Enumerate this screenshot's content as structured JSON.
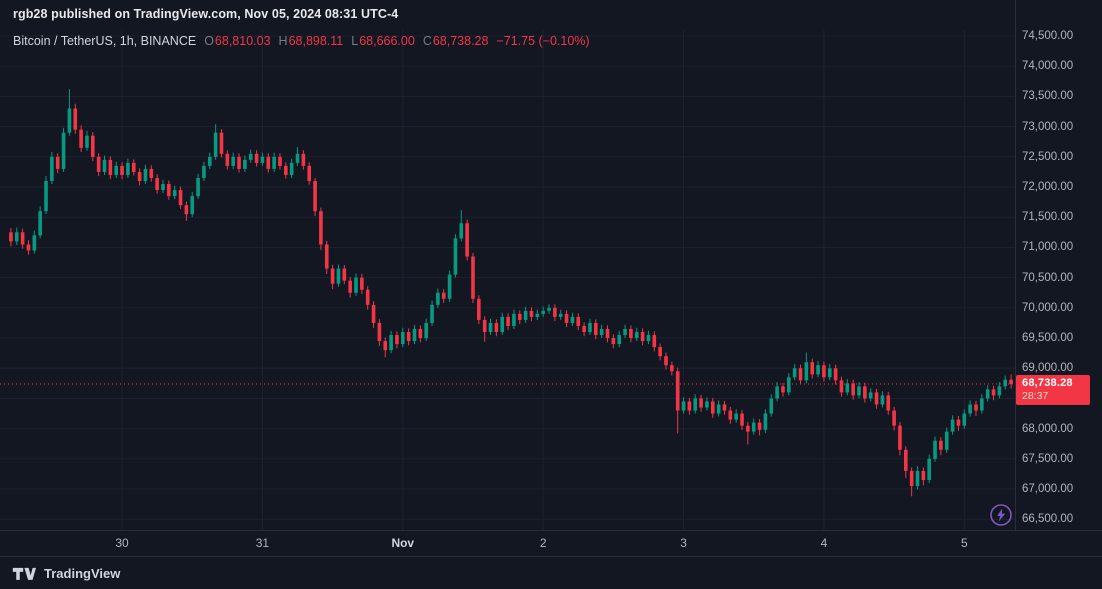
{
  "header": {
    "published_line": "rgb28 published on TradingView.com, Nov 05, 2024 08:31 UTC-4",
    "symbol": "Bitcoin / TetherUS, 1h, BINANCE",
    "ohlc": [
      {
        "k": "O",
        "v": "68,810.03"
      },
      {
        "k": "H",
        "v": "68,898.11"
      },
      {
        "k": "L",
        "v": "68,666.00"
      },
      {
        "k": "C",
        "v": "68,738.28"
      }
    ],
    "change": "−71.75 (−0.10%)"
  },
  "footer": {
    "brand": "TradingView"
  },
  "colors": {
    "background": "#131722",
    "text": "#d1d4dc",
    "muted": "#787b86",
    "axis_text": "#b2b5be",
    "grid": "#1d2230",
    "separator": "#2a2e39",
    "up": "#089981",
    "down": "#f23645",
    "boost_purple": "#7e57c2"
  },
  "chart_data": {
    "type": "candlestick",
    "symbol": "Bitcoin / TetherUS",
    "exchange": "BINANCE",
    "interval": "1h",
    "ohlc_format": [
      "open",
      "high",
      "low",
      "close"
    ],
    "price_axis": {
      "min": 66322,
      "max": 74600,
      "labels": [
        {
          "value": 74500,
          "text": "74,500.00"
        },
        {
          "value": 74000,
          "text": "74,000.00"
        },
        {
          "value": 73500,
          "text": "73,500.00"
        },
        {
          "value": 73000,
          "text": "73,000.00"
        },
        {
          "value": 72500,
          "text": "72,500.00"
        },
        {
          "value": 72000,
          "text": "72,000.00"
        },
        {
          "value": 71500,
          "text": "71,500.00"
        },
        {
          "value": 71000,
          "text": "71,000.00"
        },
        {
          "value": 70500,
          "text": "70,500.00"
        },
        {
          "value": 70000,
          "text": "70,000.00"
        },
        {
          "value": 69500,
          "text": "69,500.00"
        },
        {
          "value": 69000,
          "text": "69,000.00"
        },
        {
          "value": 68500,
          "text": "68,500.00"
        },
        {
          "value": 68000,
          "text": "68,000.00"
        },
        {
          "value": 67500,
          "text": "67,500.00"
        },
        {
          "value": 67000,
          "text": "67,000.00"
        },
        {
          "value": 66500,
          "text": "66,500.00"
        }
      ]
    },
    "time_axis": {
      "ticks": [
        {
          "label": "30",
          "index": 19,
          "major": false
        },
        {
          "label": "31",
          "index": 43,
          "major": false
        },
        {
          "label": "Nov",
          "index": 67,
          "major": true
        },
        {
          "label": "2",
          "index": 91,
          "major": false
        },
        {
          "label": "3",
          "index": 115,
          "major": false
        },
        {
          "label": "4",
          "index": 139,
          "major": false
        },
        {
          "label": "5",
          "index": 163,
          "major": false
        }
      ]
    },
    "last_price": {
      "value": 68738.28,
      "text": "68,738.28",
      "countdown": "28:37"
    },
    "candles": [
      [
        71250,
        71320,
        71020,
        71100
      ],
      [
        71100,
        71330,
        71040,
        71250
      ],
      [
        71250,
        71310,
        70980,
        71050
      ],
      [
        71050,
        71120,
        70880,
        70950
      ],
      [
        70950,
        71280,
        70900,
        71200
      ],
      [
        71200,
        71680,
        71150,
        71600
      ],
      [
        71600,
        72180,
        71550,
        72100
      ],
      [
        72100,
        72580,
        72050,
        72500
      ],
      [
        72500,
        72560,
        72230,
        72300
      ],
      [
        72300,
        72980,
        72250,
        72900
      ],
      [
        72900,
        73620,
        72850,
        73300
      ],
      [
        73300,
        73380,
        72880,
        72950
      ],
      [
        72950,
        73020,
        72580,
        72650
      ],
      [
        72650,
        72930,
        72600,
        72850
      ],
      [
        72850,
        72910,
        72430,
        72500
      ],
      [
        72500,
        72560,
        72180,
        72250
      ],
      [
        72250,
        72520,
        72200,
        72450
      ],
      [
        72450,
        72510,
        72130,
        72200
      ],
      [
        72200,
        72420,
        72150,
        72350
      ],
      [
        72350,
        72410,
        72130,
        72200
      ],
      [
        72200,
        72470,
        72150,
        72400
      ],
      [
        72400,
        72460,
        72190,
        72250
      ],
      [
        72250,
        72310,
        72030,
        72100
      ],
      [
        72100,
        72370,
        72050,
        72300
      ],
      [
        72300,
        72360,
        72090,
        72150
      ],
      [
        72150,
        72210,
        71890,
        71950
      ],
      [
        71950,
        72120,
        71900,
        72050
      ],
      [
        72050,
        72110,
        71790,
        71850
      ],
      [
        71850,
        72020,
        71800,
        71950
      ],
      [
        71950,
        72010,
        71640,
        71700
      ],
      [
        71700,
        71760,
        71440,
        71550
      ],
      [
        71550,
        71920,
        71500,
        71850
      ],
      [
        71850,
        72220,
        71800,
        72150
      ],
      [
        72150,
        72420,
        72100,
        72350
      ],
      [
        72350,
        72570,
        72300,
        72500
      ],
      [
        72500,
        73040,
        72450,
        72900
      ],
      [
        72900,
        72960,
        72490,
        72550
      ],
      [
        72550,
        72610,
        72290,
        72350
      ],
      [
        72350,
        72570,
        72300,
        72500
      ],
      [
        72500,
        72560,
        72240,
        72300
      ],
      [
        72300,
        72520,
        72250,
        72450
      ],
      [
        72450,
        72620,
        72400,
        72550
      ],
      [
        72550,
        72610,
        72340,
        72400
      ],
      [
        72400,
        72570,
        72350,
        72500
      ],
      [
        72500,
        72560,
        72240,
        72300
      ],
      [
        72300,
        72570,
        72250,
        72500
      ],
      [
        72500,
        72560,
        72290,
        72350
      ],
      [
        72350,
        72410,
        72140,
        72200
      ],
      [
        72200,
        72470,
        72150,
        72400
      ],
      [
        72400,
        72660,
        72350,
        72550
      ],
      [
        72550,
        72610,
        72290,
        72350
      ],
      [
        72350,
        72410,
        72040,
        72100
      ],
      [
        72100,
        72150,
        71520,
        71600
      ],
      [
        71600,
        71660,
        70960,
        71050
      ],
      [
        71050,
        71110,
        70560,
        70650
      ],
      [
        70650,
        70710,
        70310,
        70400
      ],
      [
        70400,
        70720,
        70350,
        70650
      ],
      [
        70650,
        70710,
        70390,
        70450
      ],
      [
        70450,
        70510,
        70170,
        70250
      ],
      [
        70250,
        70570,
        70200,
        70500
      ],
      [
        70500,
        70560,
        70230,
        70300
      ],
      [
        70300,
        70360,
        69970,
        70050
      ],
      [
        70050,
        70110,
        69670,
        69750
      ],
      [
        69750,
        69810,
        69370,
        69450
      ],
      [
        69450,
        69510,
        69180,
        69300
      ],
      [
        69300,
        69620,
        69250,
        69550
      ],
      [
        69550,
        69610,
        69330,
        69400
      ],
      [
        69400,
        69670,
        69350,
        69600
      ],
      [
        69600,
        69660,
        69380,
        69450
      ],
      [
        69450,
        69720,
        69400,
        69650
      ],
      [
        69650,
        69710,
        69430,
        69500
      ],
      [
        69500,
        69820,
        69450,
        69750
      ],
      [
        69750,
        70120,
        69700,
        70050
      ],
      [
        70050,
        70320,
        70000,
        70250
      ],
      [
        70250,
        70310,
        70080,
        70150
      ],
      [
        70150,
        70620,
        70100,
        70550
      ],
      [
        70550,
        71220,
        70500,
        71150
      ],
      [
        71150,
        71620,
        71100,
        71400
      ],
      [
        71400,
        71460,
        70780,
        70850
      ],
      [
        70850,
        70910,
        70080,
        70150
      ],
      [
        70150,
        70210,
        69730,
        69800
      ],
      [
        69800,
        69860,
        69440,
        69600
      ],
      [
        69600,
        69820,
        69550,
        69750
      ],
      [
        69750,
        69810,
        69530,
        69600
      ],
      [
        69600,
        69920,
        69550,
        69850
      ],
      [
        69850,
        69910,
        69630,
        69700
      ],
      [
        69700,
        69970,
        69650,
        69900
      ],
      [
        69900,
        69960,
        69730,
        69800
      ],
      [
        69800,
        70020,
        69750,
        69950
      ],
      [
        69950,
        70010,
        69780,
        69850
      ],
      [
        69850,
        69970,
        69800,
        69900
      ],
      [
        69900,
        70020,
        69850,
        69950
      ],
      [
        69950,
        70060,
        69900,
        70000
      ],
      [
        70000,
        70060,
        69780,
        69850
      ],
      [
        69850,
        69970,
        69800,
        69900
      ],
      [
        69900,
        69960,
        69680,
        69750
      ],
      [
        69750,
        69920,
        69700,
        69850
      ],
      [
        69850,
        69910,
        69630,
        69700
      ],
      [
        69700,
        69760,
        69530,
        69600
      ],
      [
        69600,
        69820,
        69550,
        69750
      ],
      [
        69750,
        69810,
        69480,
        69550
      ],
      [
        69550,
        69720,
        69500,
        69650
      ],
      [
        69650,
        69710,
        69430,
        69500
      ],
      [
        69500,
        69560,
        69330,
        69400
      ],
      [
        69400,
        69620,
        69350,
        69550
      ],
      [
        69550,
        69720,
        69500,
        69650
      ],
      [
        69650,
        69710,
        69430,
        69500
      ],
      [
        69500,
        69670,
        69450,
        69600
      ],
      [
        69600,
        69660,
        69380,
        69450
      ],
      [
        69450,
        69620,
        69400,
        69550
      ],
      [
        69550,
        69610,
        69280,
        69350
      ],
      [
        69350,
        69410,
        69130,
        69200
      ],
      [
        69200,
        69260,
        68980,
        69050
      ],
      [
        69050,
        69110,
        68880,
        68950
      ],
      [
        68950,
        69010,
        67920,
        68300
      ],
      [
        68300,
        68520,
        68250,
        68450
      ],
      [
        68450,
        68510,
        68230,
        68300
      ],
      [
        68300,
        68570,
        68250,
        68500
      ],
      [
        68500,
        68560,
        68280,
        68350
      ],
      [
        68350,
        68520,
        68300,
        68450
      ],
      [
        68450,
        68510,
        68180,
        68250
      ],
      [
        68250,
        68470,
        68200,
        68400
      ],
      [
        68400,
        68460,
        68230,
        68300
      ],
      [
        68300,
        68360,
        68080,
        68150
      ],
      [
        68150,
        68320,
        68100,
        68250
      ],
      [
        68250,
        68310,
        67980,
        68050
      ],
      [
        68050,
        68110,
        67740,
        67950
      ],
      [
        67950,
        68170,
        67900,
        68100
      ],
      [
        68100,
        68160,
        67890,
        67980
      ],
      [
        67980,
        68320,
        67930,
        68250
      ],
      [
        68250,
        68570,
        68200,
        68500
      ],
      [
        68500,
        68770,
        68450,
        68700
      ],
      [
        68700,
        68760,
        68530,
        68600
      ],
      [
        68600,
        68920,
        68550,
        68850
      ],
      [
        68850,
        69070,
        68800,
        69000
      ],
      [
        69000,
        69060,
        68730,
        68800
      ],
      [
        68800,
        69260,
        68750,
        69100
      ],
      [
        69100,
        69160,
        68830,
        68900
      ],
      [
        68900,
        69120,
        68850,
        69050
      ],
      [
        69050,
        69110,
        68780,
        68850
      ],
      [
        68850,
        69070,
        68800,
        69000
      ],
      [
        69000,
        69060,
        68730,
        68800
      ],
      [
        68800,
        68860,
        68530,
        68600
      ],
      [
        68600,
        68820,
        68550,
        68750
      ],
      [
        68750,
        68810,
        68480,
        68550
      ],
      [
        68550,
        68770,
        68500,
        68700
      ],
      [
        68700,
        68760,
        68430,
        68500
      ],
      [
        68500,
        68670,
        68450,
        68600
      ],
      [
        68600,
        68660,
        68330,
        68400
      ],
      [
        68400,
        68620,
        68350,
        68550
      ],
      [
        68550,
        68610,
        68230,
        68300
      ],
      [
        68300,
        68360,
        67970,
        68050
      ],
      [
        68050,
        68110,
        67560,
        67650
      ],
      [
        67650,
        67710,
        67180,
        67300
      ],
      [
        67300,
        67360,
        66880,
        67050
      ],
      [
        67050,
        67380,
        66990,
        67300
      ],
      [
        67300,
        67360,
        67060,
        67150
      ],
      [
        67150,
        67570,
        67100,
        67500
      ],
      [
        67500,
        67870,
        67450,
        67800
      ],
      [
        67800,
        67860,
        67560,
        67650
      ],
      [
        67650,
        68020,
        67600,
        67950
      ],
      [
        67950,
        68220,
        67900,
        68150
      ],
      [
        68150,
        68210,
        67960,
        68050
      ],
      [
        68050,
        68320,
        68000,
        68250
      ],
      [
        68250,
        68470,
        68200,
        68400
      ],
      [
        68400,
        68460,
        68210,
        68300
      ],
      [
        68300,
        68570,
        68250,
        68500
      ],
      [
        68500,
        68720,
        68450,
        68650
      ],
      [
        68650,
        68710,
        68470,
        68550
      ],
      [
        68550,
        68770,
        68500,
        68700
      ],
      [
        68700,
        68880,
        68650,
        68810
      ],
      [
        68810.03,
        68898.11,
        68666.0,
        68738.28
      ]
    ]
  }
}
